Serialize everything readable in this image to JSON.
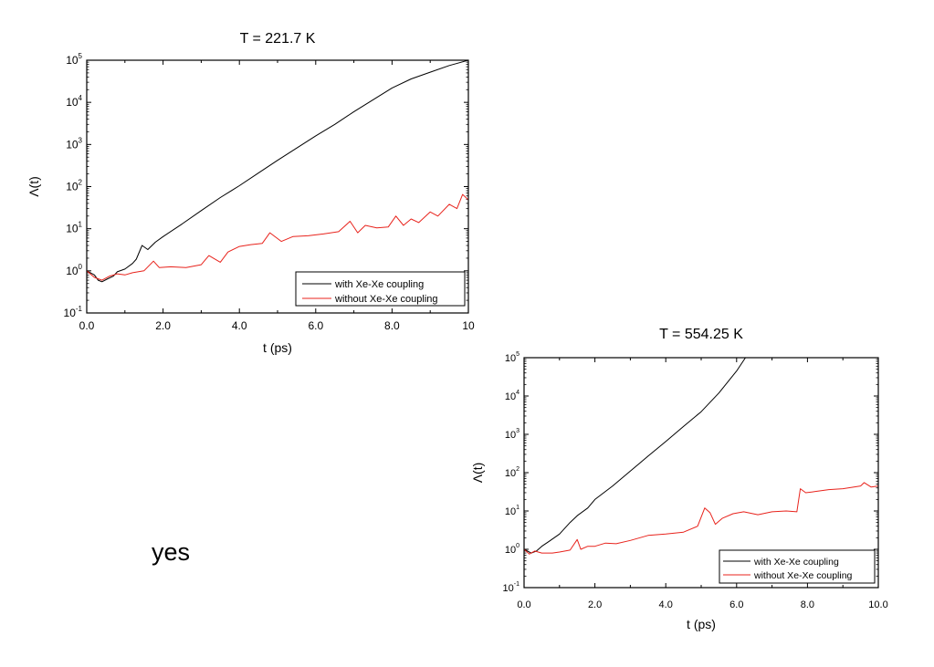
{
  "note_text": "yes",
  "chart_data": [
    {
      "type": "line",
      "title": "T = 221.7 K",
      "xlabel": "t (ps)",
      "ylabel": "Λ(t)",
      "xlim": [
        0,
        10
      ],
      "ylim": [
        0.1,
        100000
      ],
      "yscale": "log",
      "xticks": [
        "0.0",
        "2.0",
        "4.0",
        "6.0",
        "8.0",
        "10"
      ],
      "yticks": [
        {
          "base": "10",
          "exp": "-1"
        },
        {
          "base": "10",
          "exp": "0"
        },
        {
          "base": "10",
          "exp": "1"
        },
        {
          "base": "10",
          "exp": "2"
        },
        {
          "base": "10",
          "exp": "3"
        },
        {
          "base": "10",
          "exp": "4"
        },
        {
          "base": "10",
          "exp": "5"
        }
      ],
      "legend_position": "bottom-right",
      "series": [
        {
          "name": "with Xe-Xe coupling",
          "color": "#000000",
          "x": [
            0,
            0.2,
            0.3,
            0.4,
            0.55,
            0.7,
            0.8,
            1.0,
            1.2,
            1.3,
            1.45,
            1.6,
            1.8,
            2.0,
            2.5,
            3.0,
            3.5,
            4.0,
            4.5,
            5.0,
            5.5,
            6.0,
            6.5,
            7.0,
            7.5,
            8.0,
            8.5,
            9.0,
            9.5,
            10.0
          ],
          "y": [
            1.0,
            0.8,
            0.6,
            0.55,
            0.65,
            0.75,
            0.95,
            1.1,
            1.5,
            1.9,
            4.0,
            3.2,
            4.8,
            6.5,
            13,
            27,
            55,
            105,
            210,
            420,
            820,
            1600,
            3000,
            6000,
            11500,
            22000,
            36000,
            52000,
            75000,
            100000
          ]
        },
        {
          "name": "without Xe-Xe coupling",
          "color": "#e8231c",
          "x": [
            0,
            0.2,
            0.4,
            0.6,
            0.8,
            1.0,
            1.2,
            1.5,
            1.75,
            1.9,
            2.2,
            2.6,
            3.0,
            3.2,
            3.5,
            3.7,
            4.0,
            4.3,
            4.6,
            4.8,
            5.1,
            5.4,
            5.8,
            6.2,
            6.6,
            6.9,
            7.1,
            7.3,
            7.6,
            7.9,
            8.1,
            8.3,
            8.5,
            8.7,
            9.0,
            9.2,
            9.5,
            9.7,
            9.85,
            10.0
          ],
          "y": [
            1.0,
            0.7,
            0.6,
            0.75,
            0.85,
            0.8,
            0.9,
            1.0,
            1.7,
            1.2,
            1.25,
            1.2,
            1.4,
            2.3,
            1.6,
            2.8,
            3.8,
            4.2,
            4.5,
            8.0,
            5.0,
            6.5,
            6.8,
            7.5,
            8.5,
            15,
            8.0,
            12,
            10.5,
            11,
            20,
            12,
            17,
            14,
            25,
            20,
            38,
            30,
            65,
            48
          ]
        }
      ]
    },
    {
      "type": "line",
      "title": "T = 554.25 K",
      "xlabel": "t (ps)",
      "ylabel": "Λ(t)",
      "xlim": [
        0,
        10
      ],
      "ylim": [
        0.1,
        100000
      ],
      "yscale": "log",
      "xticks": [
        "0.0",
        "2.0",
        "4.0",
        "6.0",
        "8.0",
        "10.0"
      ],
      "yticks": [
        {
          "base": "10",
          "exp": "-1"
        },
        {
          "base": "10",
          "exp": "0"
        },
        {
          "base": "10",
          "exp": "1"
        },
        {
          "base": "10",
          "exp": "2"
        },
        {
          "base": "10",
          "exp": "3"
        },
        {
          "base": "10",
          "exp": "4"
        },
        {
          "base": "10",
          "exp": "5"
        }
      ],
      "legend_position": "bottom-right",
      "series": [
        {
          "name": "with Xe-Xe coupling",
          "color": "#000000",
          "x": [
            0,
            0.2,
            0.35,
            0.5,
            0.7,
            1.0,
            1.3,
            1.5,
            1.8,
            2.0,
            2.5,
            3.0,
            3.5,
            4.0,
            4.5,
            5.0,
            5.5,
            6.0,
            6.25
          ],
          "y": [
            1.0,
            0.8,
            0.9,
            1.2,
            1.6,
            2.5,
            5.0,
            7.5,
            12,
            20,
            45,
            110,
            270,
            650,
            1600,
            3900,
            12000,
            45000,
            100000
          ]
        },
        {
          "name": "without Xe-Xe coupling",
          "color": "#e8231c",
          "x": [
            0,
            0.15,
            0.3,
            0.5,
            0.8,
            1.0,
            1.3,
            1.5,
            1.6,
            1.8,
            2.0,
            2.3,
            2.6,
            3.0,
            3.5,
            4.0,
            4.5,
            4.9,
            5.1,
            5.25,
            5.4,
            5.6,
            5.9,
            6.2,
            6.6,
            7.0,
            7.4,
            7.7,
            7.8,
            7.95,
            8.2,
            8.6,
            9.0,
            9.5,
            9.6,
            9.8,
            10.0
          ],
          "y": [
            1.0,
            0.75,
            0.9,
            0.8,
            0.8,
            0.85,
            0.95,
            1.8,
            1.0,
            1.2,
            1.2,
            1.45,
            1.4,
            1.7,
            2.3,
            2.5,
            2.8,
            4.0,
            12,
            9.0,
            4.5,
            6.5,
            8.5,
            9.5,
            8.0,
            9.5,
            10,
            9.5,
            38,
            30,
            32,
            36,
            38,
            45,
            55,
            42,
            45
          ]
        }
      ]
    }
  ]
}
